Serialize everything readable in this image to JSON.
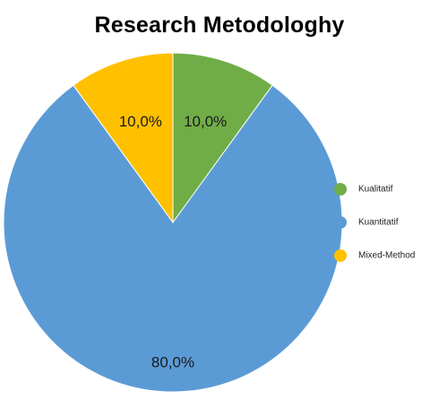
{
  "chart_data": {
    "type": "pie",
    "title": "Research Metodologhy",
    "start_angle_deg": 0,
    "direction": "clockwise",
    "slices": [
      {
        "name": "Kualitatif",
        "value": 10.0,
        "label": "10,0%",
        "color": "#70ad47"
      },
      {
        "name": "Kuantitatif",
        "value": 80.0,
        "label": "80,0%",
        "color": "#5b9bd5"
      },
      {
        "name": "Mixed-Method",
        "value": 10.0,
        "label": "10,0%",
        "color": "#ffc000"
      }
    ],
    "legend": {
      "position": "right",
      "entries": [
        "Kualitatif",
        "Kuantitatif",
        "Mixed-Method"
      ]
    }
  }
}
